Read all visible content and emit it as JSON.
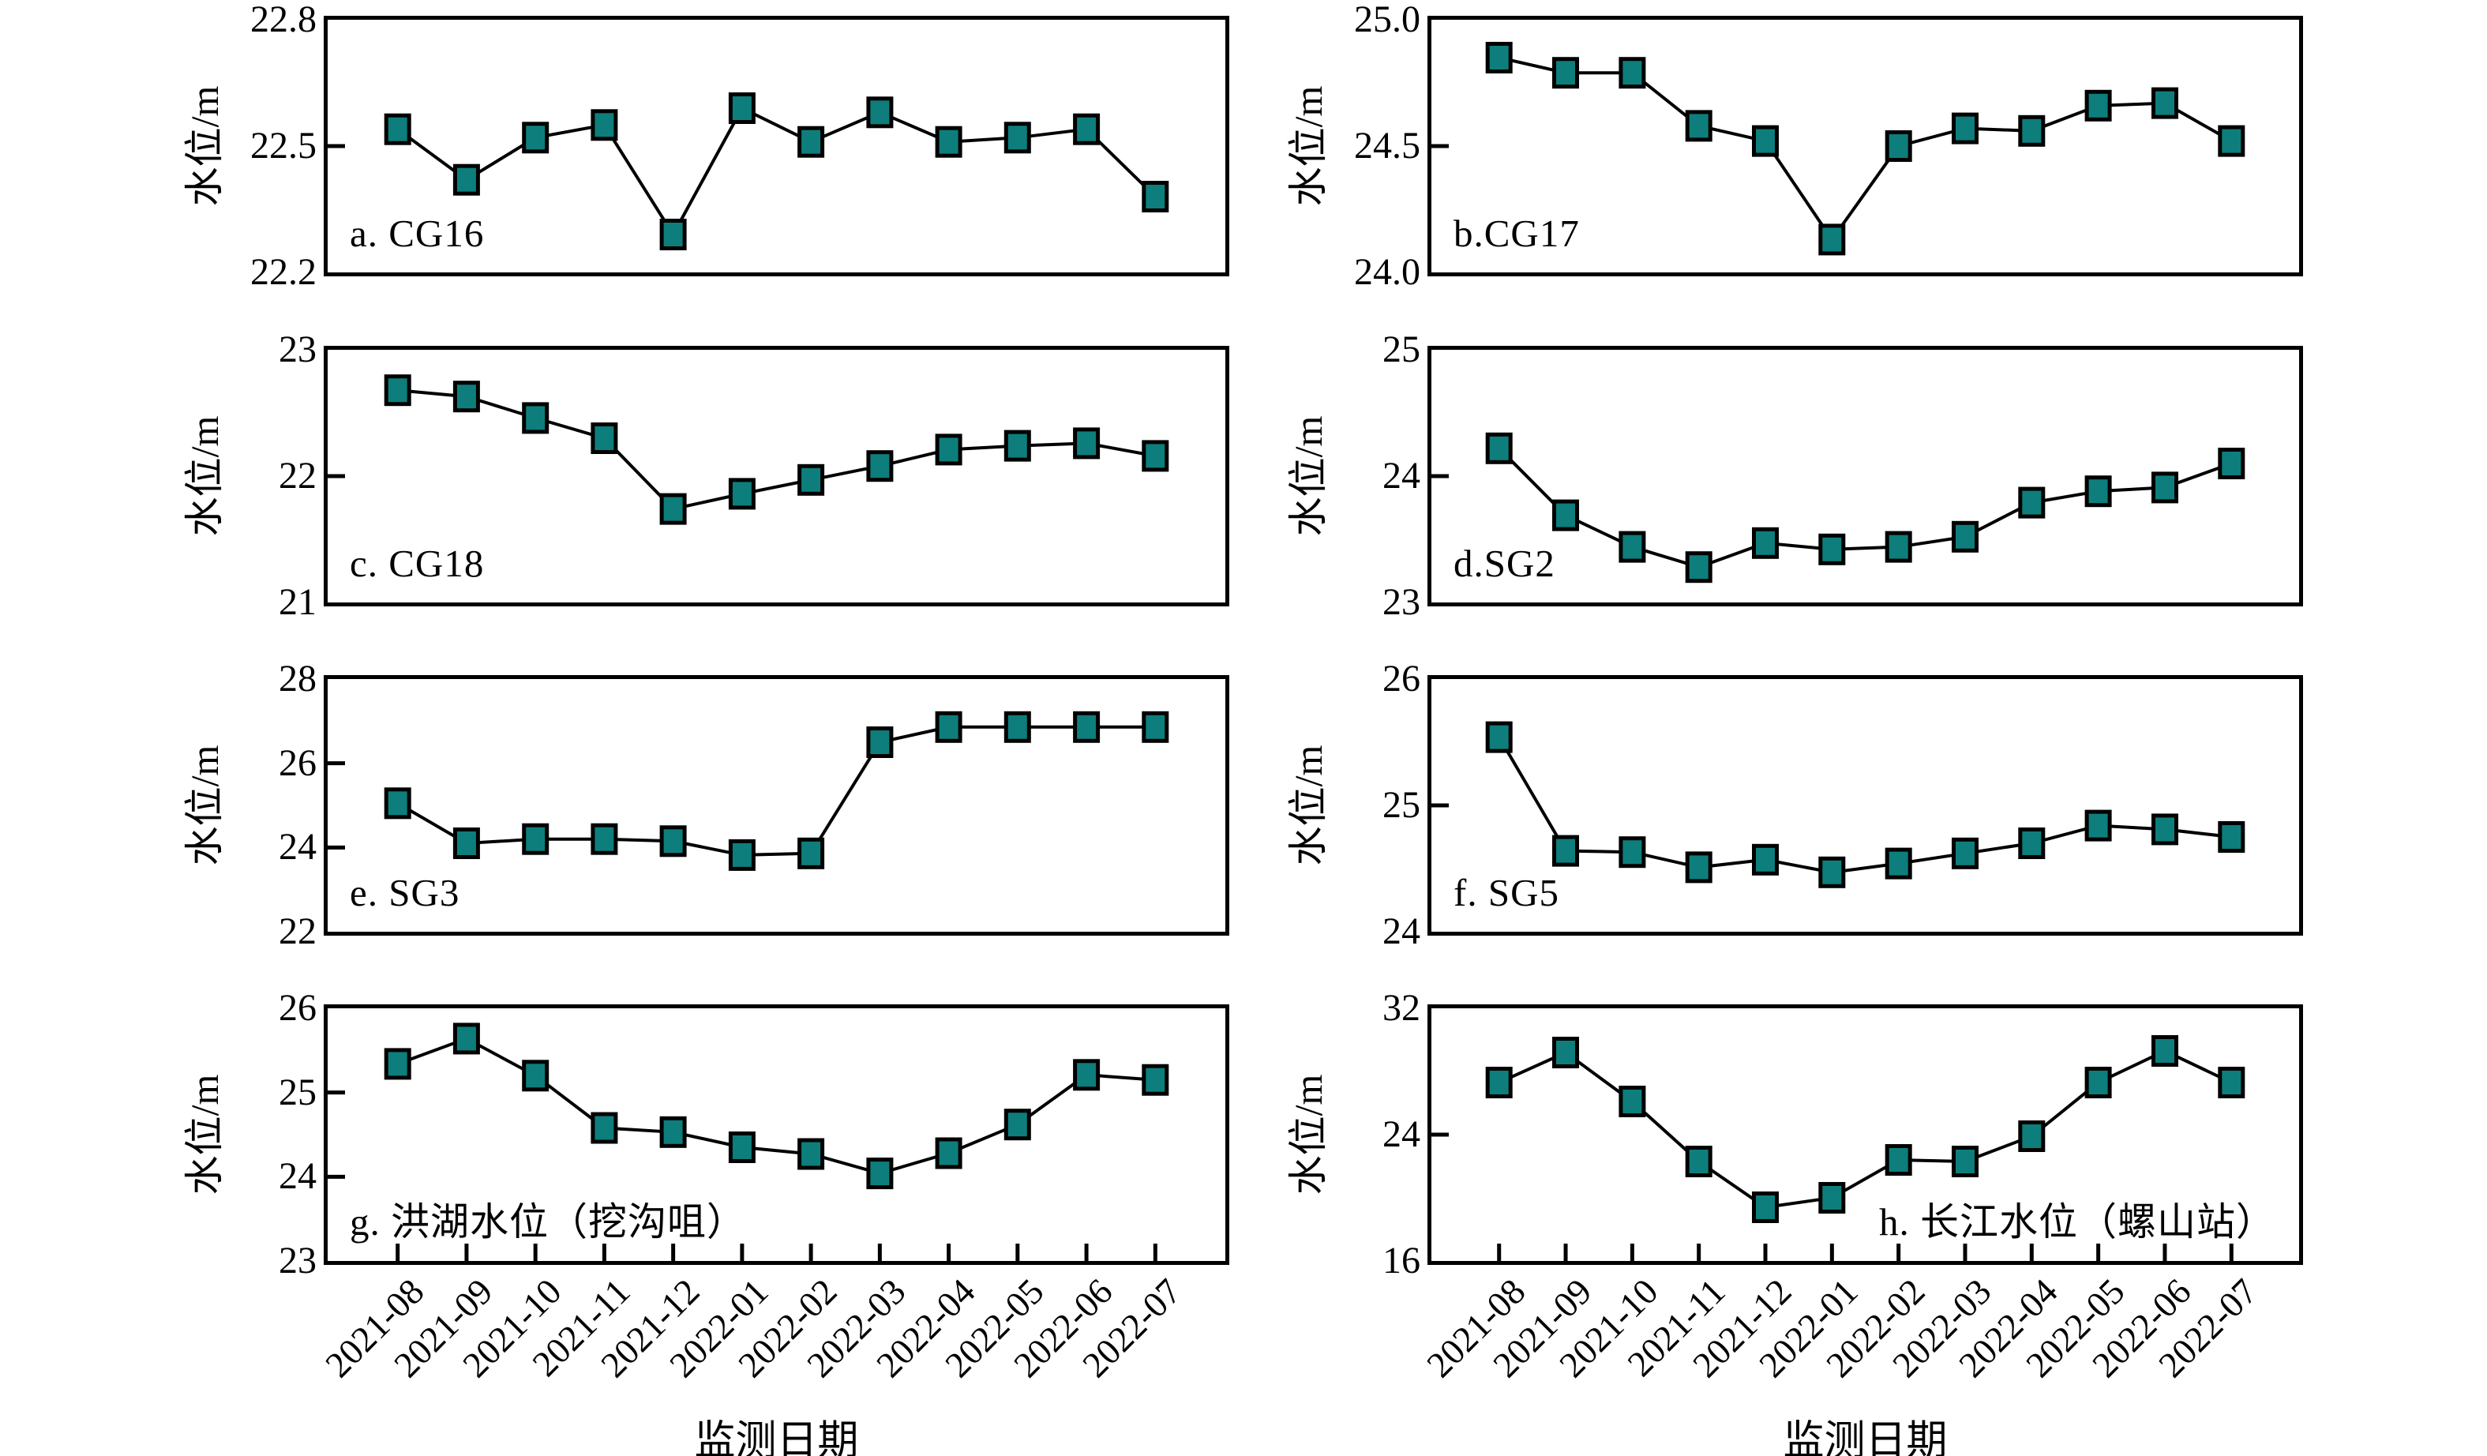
{
  "figure": {
    "background": "#ffffff",
    "x_label": "监测日期",
    "y_label": "水位/m",
    "x_categories": [
      "2021-08",
      "2021-09",
      "2021-10",
      "2021-11",
      "2021-12",
      "2022-01",
      "2022-02",
      "2022-03",
      "2022-04",
      "2022-05",
      "2022-06",
      "2022-07"
    ]
  },
  "colors": {
    "marker_fill": "#0d7e7b",
    "line": "#000000",
    "text": "#000000"
  },
  "chart_data": [
    {
      "type": "line",
      "panel_id": "a",
      "title": "a. CG16",
      "station": "CG16",
      "col": 0,
      "row": 0,
      "label_corner": "bottom-left",
      "xlabel": "监测日期",
      "ylabel": "水位/m",
      "ylim": [
        22.2,
        22.8
      ],
      "yticks": [
        22.2,
        22.5,
        22.8
      ],
      "ytick_labels": [
        "22.2",
        "22.5",
        "22.8"
      ],
      "values": [
        22.54,
        22.42,
        22.52,
        22.55,
        22.29,
        22.59,
        22.51,
        22.58,
        22.51,
        22.52,
        22.54,
        22.38
      ]
    },
    {
      "type": "line",
      "panel_id": "b",
      "title": "b.CG17",
      "station": "CG17",
      "col": 1,
      "row": 0,
      "label_corner": "bottom-left",
      "xlabel": "监测日期",
      "ylabel": "水位/m",
      "ylim": [
        24.0,
        25.0
      ],
      "yticks": [
        24.0,
        24.5,
        25.0
      ],
      "ytick_labels": [
        "24.0",
        "24.5",
        "25.0"
      ],
      "values": [
        24.85,
        24.79,
        24.79,
        24.58,
        24.52,
        24.13,
        24.5,
        24.57,
        24.56,
        24.66,
        24.67,
        24.52
      ]
    },
    {
      "type": "line",
      "panel_id": "c",
      "title": "c. CG18",
      "station": "CG18",
      "col": 0,
      "row": 1,
      "label_corner": "bottom-left",
      "xlabel": "监测日期",
      "ylabel": "水位/m",
      "ylim": [
        21,
        23
      ],
      "yticks": [
        21,
        22,
        23
      ],
      "ytick_labels": [
        "21",
        "22",
        "23"
      ],
      "values": [
        22.68,
        22.63,
        22.46,
        22.3,
        21.74,
        21.86,
        21.97,
        22.08,
        22.21,
        22.24,
        22.26,
        22.16
      ]
    },
    {
      "type": "line",
      "panel_id": "d",
      "title": "d.SG2",
      "station": "SG2",
      "col": 1,
      "row": 1,
      "label_corner": "bottom-left",
      "xlabel": "监测日期",
      "ylabel": "水位/m",
      "ylim": [
        23,
        25
      ],
      "yticks": [
        23,
        24,
        25
      ],
      "ytick_labels": [
        "23",
        "24",
        "25"
      ],
      "values": [
        24.22,
        23.69,
        23.44,
        23.28,
        23.47,
        23.42,
        23.44,
        23.52,
        23.79,
        23.88,
        23.91,
        24.1
      ]
    },
    {
      "type": "line",
      "panel_id": "e",
      "title": "e. SG3",
      "station": "SG3",
      "col": 0,
      "row": 2,
      "label_corner": "bottom-left",
      "xlabel": "监测日期",
      "ylabel": "水位/m",
      "ylim": [
        22,
        28
      ],
      "yticks": [
        22,
        24,
        26,
        28
      ],
      "ytick_labels": [
        "22",
        "24",
        "26",
        "28"
      ],
      "values": [
        25.05,
        24.1,
        24.2,
        24.2,
        24.15,
        23.82,
        23.86,
        26.5,
        26.86,
        26.86,
        26.86,
        26.86
      ]
    },
    {
      "type": "line",
      "panel_id": "f",
      "title": "f. SG5",
      "station": "SG5",
      "col": 1,
      "row": 2,
      "label_corner": "bottom-left",
      "xlabel": "监测日期",
      "ylabel": "水位/m",
      "ylim": [
        24,
        26
      ],
      "yticks": [
        24,
        25,
        26
      ],
      "ytick_labels": [
        "24",
        "25",
        "26"
      ],
      "values": [
        25.54,
        24.64,
        24.63,
        24.51,
        24.57,
        24.47,
        24.54,
        24.62,
        24.7,
        24.84,
        24.81,
        24.75
      ]
    },
    {
      "type": "line",
      "panel_id": "g",
      "title": "g. 洪湖水位（挖沟咀）",
      "station": "洪湖水位（挖沟咀）",
      "col": 0,
      "row": 3,
      "label_corner": "bottom-left",
      "xlabel": "监测日期",
      "ylabel": "水位/m",
      "ylim": [
        23,
        26
      ],
      "yticks": [
        23,
        24,
        25,
        26
      ],
      "ytick_labels": [
        "23",
        "24",
        "25",
        "26"
      ],
      "values": [
        25.34,
        25.64,
        25.2,
        24.58,
        24.53,
        24.35,
        24.27,
        24.04,
        24.28,
        24.62,
        25.21,
        25.15
      ]
    },
    {
      "type": "line",
      "panel_id": "h",
      "title": "h. 长江水位（螺山站）",
      "station": "长江水位（螺山站）",
      "col": 1,
      "row": 3,
      "label_corner": "bottom-right",
      "xlabel": "监测日期",
      "ylabel": "水位/m",
      "ylim": [
        16,
        32
      ],
      "yticks": [
        16,
        24,
        32
      ],
      "ytick_labels": [
        "16",
        "24",
        "32"
      ],
      "values": [
        27.3,
        29.2,
        26.1,
        22.3,
        19.4,
        20.0,
        22.4,
        22.3,
        23.9,
        27.3,
        29.3,
        27.3
      ]
    }
  ]
}
